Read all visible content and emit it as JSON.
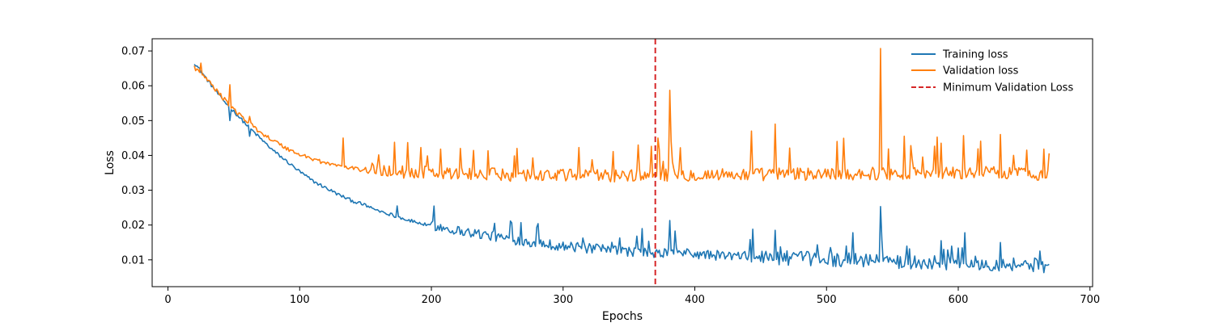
{
  "chart_data": {
    "type": "line",
    "title": "",
    "xlabel": "Epochs",
    "ylabel": "Loss",
    "xlim": [
      -12,
      702
    ],
    "ylim": [
      0.0023,
      0.0735
    ],
    "xticks": [
      0,
      100,
      200,
      300,
      400,
      500,
      600,
      700
    ],
    "yticks": [
      0.01,
      0.02,
      0.03,
      0.04,
      0.05,
      0.06,
      0.07
    ],
    "xtick_labels": [
      "0",
      "100",
      "200",
      "300",
      "400",
      "500",
      "600",
      "700"
    ],
    "ytick_labels": [
      "0.01",
      "0.02",
      "0.03",
      "0.04",
      "0.05",
      "0.06",
      "0.07"
    ],
    "grid": false,
    "legend_position": "top-right",
    "x_start": 20,
    "x_end": 669,
    "series": [
      {
        "name": "Training loss",
        "color": "#1f77b4",
        "points": [
          [
            20,
            0.0665
          ],
          [
            30,
            0.0615
          ],
          [
            40,
            0.0565
          ],
          [
            50,
            0.0525
          ],
          [
            60,
            0.0485
          ],
          [
            70,
            0.0448
          ],
          [
            80,
            0.0412
          ],
          [
            90,
            0.0382
          ],
          [
            100,
            0.0352
          ],
          [
            110,
            0.0325
          ],
          [
            120,
            0.0305
          ],
          [
            130,
            0.0285
          ],
          [
            140,
            0.0268
          ],
          [
            150,
            0.0255
          ],
          [
            160,
            0.024
          ],
          [
            170,
            0.0228
          ],
          [
            180,
            0.0215
          ],
          [
            200,
            0.0195
          ],
          [
            220,
            0.018
          ],
          [
            240,
            0.0168
          ],
          [
            260,
            0.0155
          ],
          [
            280,
            0.0145
          ],
          [
            300,
            0.0135
          ],
          [
            320,
            0.0128
          ],
          [
            340,
            0.0122
          ],
          [
            360,
            0.0118
          ],
          [
            370,
            0.011
          ],
          [
            380,
            0.012
          ],
          [
            400,
            0.0112
          ],
          [
            420,
            0.0108
          ],
          [
            440,
            0.0105
          ],
          [
            460,
            0.01
          ],
          [
            480,
            0.0098
          ],
          [
            500,
            0.0095
          ],
          [
            520,
            0.0094
          ],
          [
            540,
            0.0092
          ],
          [
            560,
            0.0088
          ],
          [
            580,
            0.0086
          ],
          [
            600,
            0.0085
          ],
          [
            620,
            0.0083
          ],
          [
            640,
            0.0082
          ],
          [
            660,
            0.0079
          ],
          [
            669,
            0.0073
          ]
        ],
        "spikes": [
          [
            47,
            0.05
          ],
          [
            62,
            0.0455
          ],
          [
            248,
            0.0205
          ],
          [
            268,
            0.0207
          ],
          [
            356,
            0.0168
          ],
          [
            381,
            0.0213
          ],
          [
            444,
            0.0188
          ],
          [
            461,
            0.0185
          ],
          [
            520,
            0.0178
          ],
          [
            541,
            0.0253
          ],
          [
            587,
            0.0155
          ],
          [
            605,
            0.0178
          ],
          [
            632,
            0.015
          ]
        ]
      },
      {
        "name": "Validation loss",
        "color": "#ff7f0e",
        "points": [
          [
            20,
            0.065
          ],
          [
            30,
            0.0615
          ],
          [
            40,
            0.057
          ],
          [
            50,
            0.053
          ],
          [
            60,
            0.0495
          ],
          [
            70,
            0.0465
          ],
          [
            80,
            0.044
          ],
          [
            90,
            0.0418
          ],
          [
            100,
            0.04
          ],
          [
            110,
            0.0388
          ],
          [
            120,
            0.0375
          ],
          [
            130,
            0.0368
          ],
          [
            140,
            0.036
          ],
          [
            150,
            0.0355
          ],
          [
            160,
            0.035
          ],
          [
            180,
            0.0345
          ],
          [
            200,
            0.0342
          ],
          [
            220,
            0.034
          ],
          [
            240,
            0.0338
          ],
          [
            260,
            0.0337
          ],
          [
            280,
            0.0336
          ],
          [
            300,
            0.0335
          ],
          [
            320,
            0.0335
          ],
          [
            340,
            0.0335
          ],
          [
            360,
            0.0336
          ],
          [
            380,
            0.0337
          ],
          [
            400,
            0.0337
          ],
          [
            440,
            0.0338
          ],
          [
            480,
            0.0339
          ],
          [
            520,
            0.034
          ],
          [
            560,
            0.0341
          ],
          [
            600,
            0.0342
          ],
          [
            640,
            0.0343
          ],
          [
            669,
            0.0338
          ]
        ],
        "spikes": [
          [
            25,
            0.0665
          ],
          [
            47,
            0.0603
          ],
          [
            62,
            0.0512
          ],
          [
            133,
            0.045
          ],
          [
            222,
            0.042
          ],
          [
            265,
            0.042
          ],
          [
            357,
            0.043
          ],
          [
            372,
            0.045
          ],
          [
            381,
            0.0587
          ],
          [
            443,
            0.047
          ],
          [
            461,
            0.049
          ],
          [
            508,
            0.044
          ],
          [
            541,
            0.0707
          ],
          [
            559,
            0.0455
          ],
          [
            587,
            0.0435
          ],
          [
            604,
            0.0457
          ],
          [
            632,
            0.046
          ],
          [
            665,
            0.0418
          ]
        ]
      },
      {
        "name": "Minimum Validation Loss",
        "color": "#d62728",
        "type": "vline",
        "x": 370,
        "style": "dashed"
      }
    ]
  }
}
